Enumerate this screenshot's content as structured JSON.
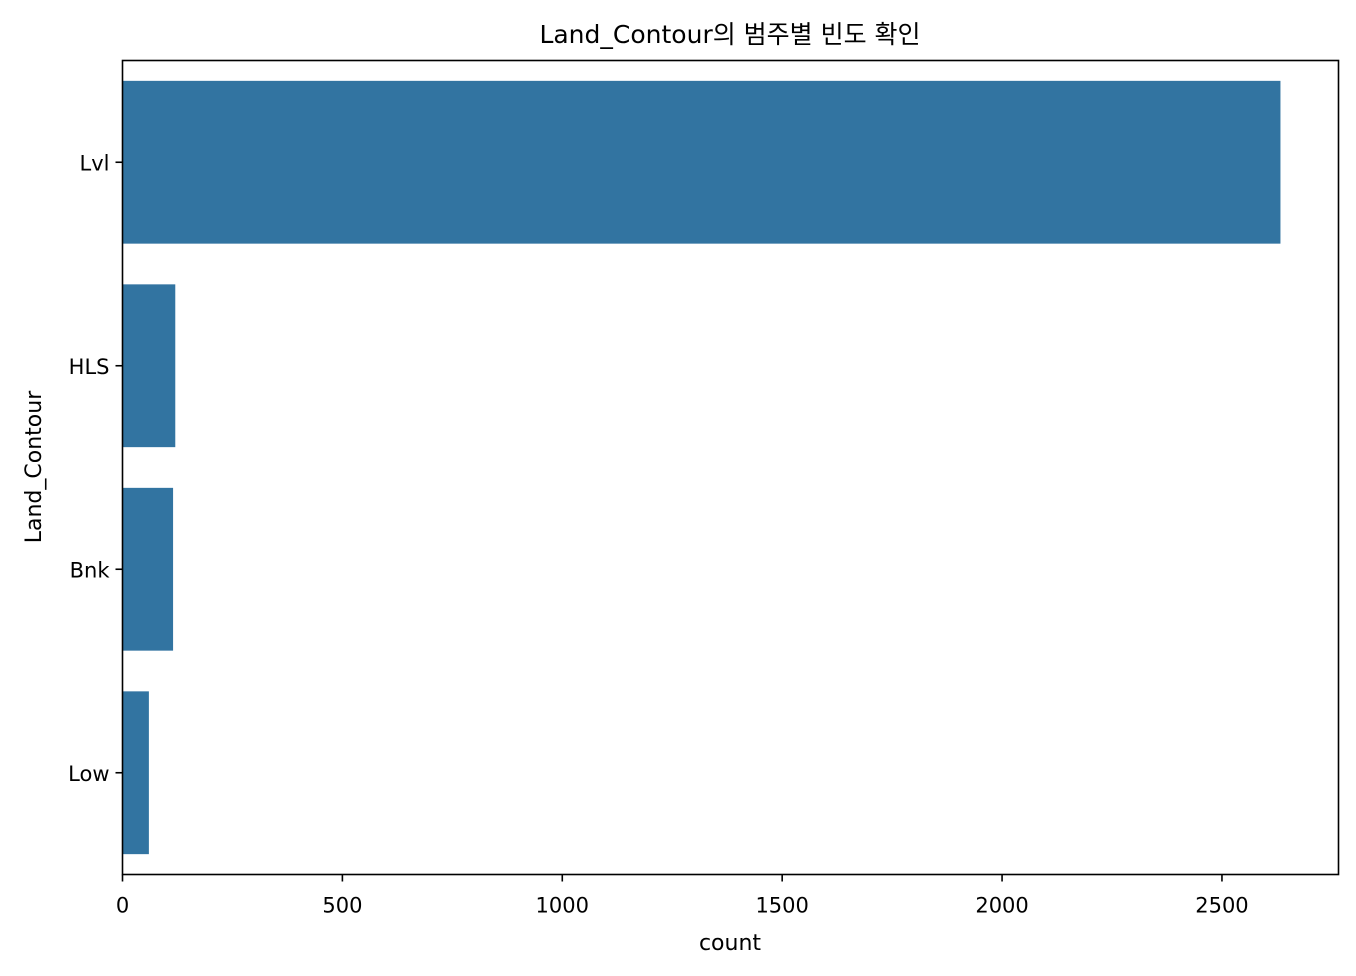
{
  "chart_data": {
    "type": "bar",
    "orientation": "horizontal",
    "title": "Land_Contour의 범주별 빈도 확인",
    "xlabel": "count",
    "ylabel": "Land_Contour",
    "categories": [
      "Lvl",
      "HLS",
      "Bnk",
      "Low"
    ],
    "values": [
      2633,
      120,
      115,
      60
    ],
    "xlim": [
      0,
      2765
    ],
    "xticks": [
      0,
      500,
      1000,
      1500,
      2000,
      2500
    ],
    "grid": false,
    "bar_color": "#3274a1"
  }
}
